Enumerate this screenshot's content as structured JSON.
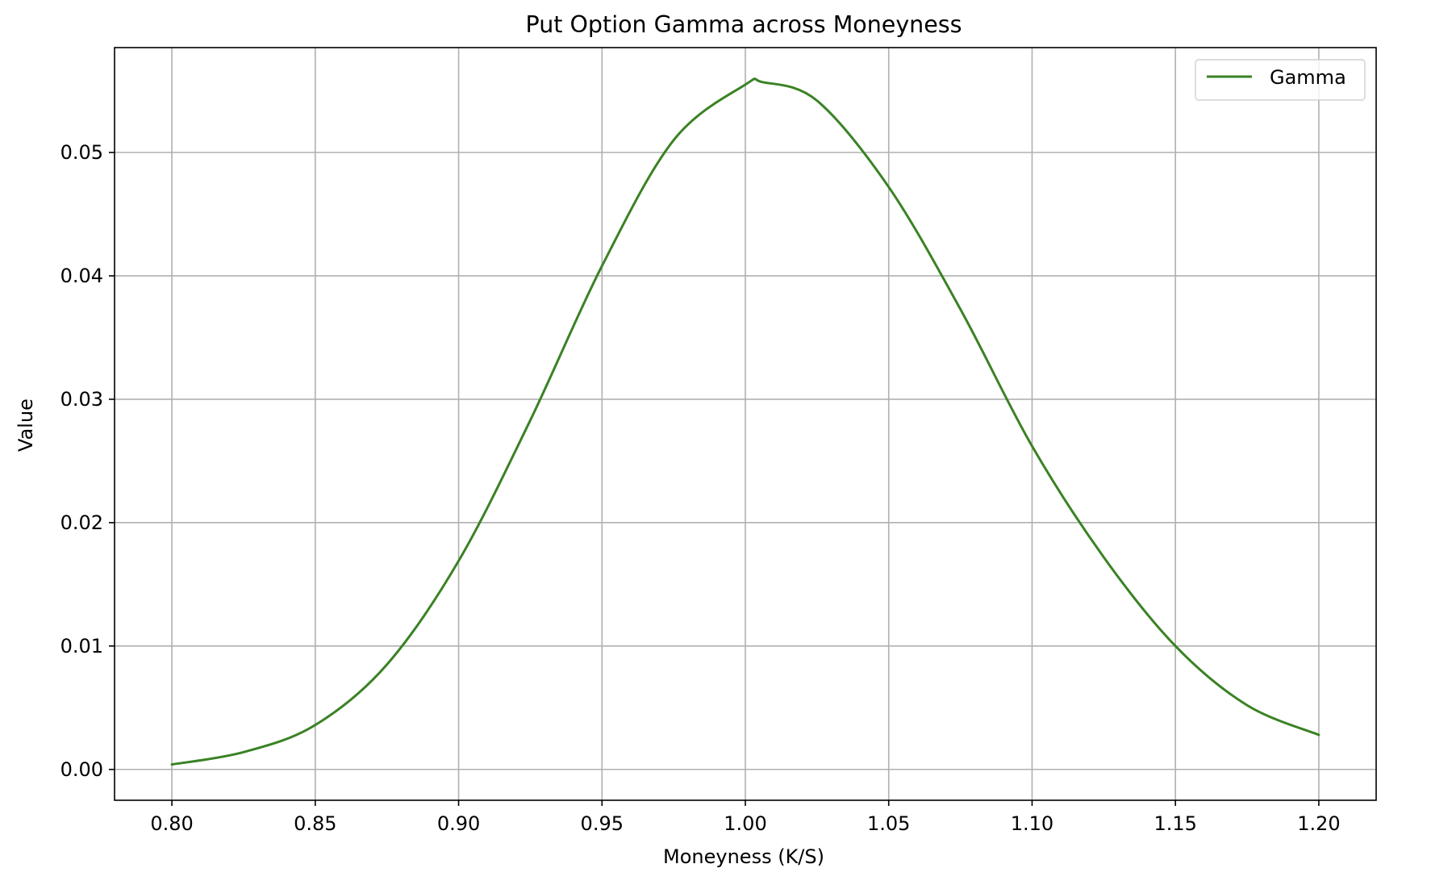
{
  "chart_data": {
    "type": "line",
    "title": "Put Option Gamma across Moneyness",
    "xlabel": "Moneyness (K/S)",
    "ylabel": "Value",
    "xlim": [
      0.78,
      1.22
    ],
    "ylim": [
      -0.0025,
      0.0585
    ],
    "xticks": [
      0.8,
      0.85,
      0.9,
      0.95,
      1.0,
      1.05,
      1.1,
      1.15,
      1.2
    ],
    "xtick_labels": [
      "0.80",
      "0.85",
      "0.90",
      "0.95",
      "1.00",
      "1.05",
      "1.10",
      "1.15",
      "1.20"
    ],
    "yticks": [
      0.0,
      0.01,
      0.02,
      0.03,
      0.04,
      0.05
    ],
    "ytick_labels": [
      "0.00",
      "0.01",
      "0.02",
      "0.03",
      "0.04",
      "0.05"
    ],
    "grid": true,
    "legend_position": "top-right",
    "series": [
      {
        "name": "Gamma",
        "color": "#3a8224",
        "x": [
          0.8,
          0.825,
          0.85,
          0.875,
          0.9,
          0.925,
          0.95,
          0.975,
          1.0,
          1.006,
          1.025,
          1.05,
          1.075,
          1.1,
          1.125,
          1.15,
          1.175,
          1.2
        ],
        "y": [
          0.0004,
          0.0014,
          0.0036,
          0.0085,
          0.0169,
          0.0283,
          0.0408,
          0.051,
          0.0555,
          0.0557,
          0.0542,
          0.0472,
          0.0373,
          0.0262,
          0.0172,
          0.01,
          0.0052,
          0.0028
        ]
      }
    ]
  }
}
